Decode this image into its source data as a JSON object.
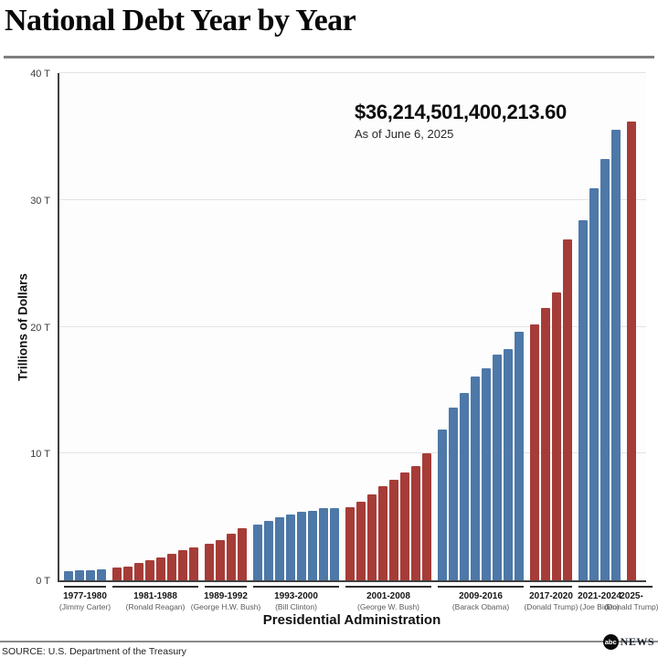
{
  "header": {
    "title": "National Debt Year by Year"
  },
  "footer": {
    "source": "SOURCE: U.S. Department of the Treasury",
    "logo": {
      "circle_text": "abc",
      "wordmark": "NEWS"
    }
  },
  "chart_data": {
    "type": "bar",
    "title": "National Debt Year by Year",
    "xlabel": "Presidential Administration",
    "ylabel": "Trillions of Dollars",
    "ylim": [
      0,
      40
    ],
    "grid": true,
    "yticks": [
      {
        "value": 0,
        "label": "0 T"
      },
      {
        "value": 10,
        "label": "10 T"
      },
      {
        "value": 20,
        "label": "20 T"
      },
      {
        "value": 30,
        "label": "30 T"
      },
      {
        "value": 40,
        "label": "40 T"
      }
    ],
    "annotation": {
      "headline": "$36,214,501,400,213.60",
      "subtext": "As of June 6, 2025"
    },
    "party_colors": {
      "democrat": "#4d78a8",
      "republican": "#a63c38"
    },
    "units": "trillions of US dollars",
    "groups": [
      {
        "years": "1977-1980",
        "president": "(Jimmy Carter)",
        "party": "democrat",
        "values": [
          0.7,
          0.8,
          0.8,
          0.9
        ]
      },
      {
        "years": "1981-1988",
        "president": "(Ronald Reagan)",
        "party": "republican",
        "values": [
          1.0,
          1.1,
          1.4,
          1.6,
          1.8,
          2.1,
          2.4,
          2.6
        ]
      },
      {
        "years": "1989-1992",
        "president": "(George H.W. Bush)",
        "party": "republican",
        "values": [
          2.9,
          3.2,
          3.7,
          4.1
        ]
      },
      {
        "years": "1993-2000",
        "president": "(Bill Clinton)",
        "party": "democrat",
        "values": [
          4.4,
          4.7,
          5.0,
          5.2,
          5.4,
          5.5,
          5.7,
          5.7
        ]
      },
      {
        "years": "2001-2008",
        "president": "(George W. Bush)",
        "party": "republican",
        "values": [
          5.8,
          6.2,
          6.8,
          7.4,
          7.9,
          8.5,
          9.0,
          10.0
        ]
      },
      {
        "years": "2009-2016",
        "president": "(Barack Obama)",
        "party": "democrat",
        "values": [
          11.9,
          13.6,
          14.8,
          16.1,
          16.7,
          17.8,
          18.2,
          19.6
        ]
      },
      {
        "years": "2017-2020",
        "president": "(Donald Trump)",
        "party": "republican",
        "values": [
          20.2,
          21.5,
          22.7,
          26.9
        ]
      },
      {
        "years": "2021-2024",
        "president": "(Joe Biden)",
        "party": "democrat",
        "values": [
          28.4,
          30.9,
          33.2,
          35.5
        ]
      },
      {
        "years": "2025-",
        "president": "(Donald Trump)",
        "party": "republican",
        "values": [
          36.2
        ]
      }
    ]
  }
}
